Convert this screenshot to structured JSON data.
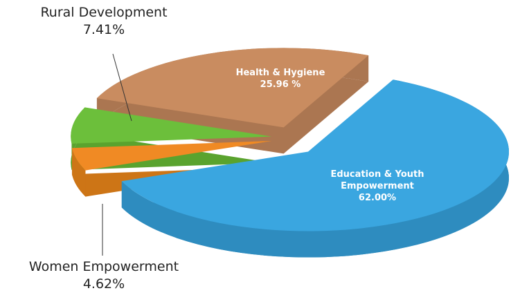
{
  "chart_data": {
    "type": "pie",
    "categories": [
      "Education & Youth Empowerment",
      "Women Empowerment",
      "Rural Development",
      "Health & Hygiene"
    ],
    "values": [
      62.0,
      4.62,
      7.41,
      25.96
    ],
    "value_labels": [
      "62.00%",
      "4.62%",
      "7.41%",
      "25.96 %"
    ],
    "colors": [
      "#3aa6e0",
      "#f08a24",
      "#6cbf3b",
      "#c98c60"
    ]
  }
}
